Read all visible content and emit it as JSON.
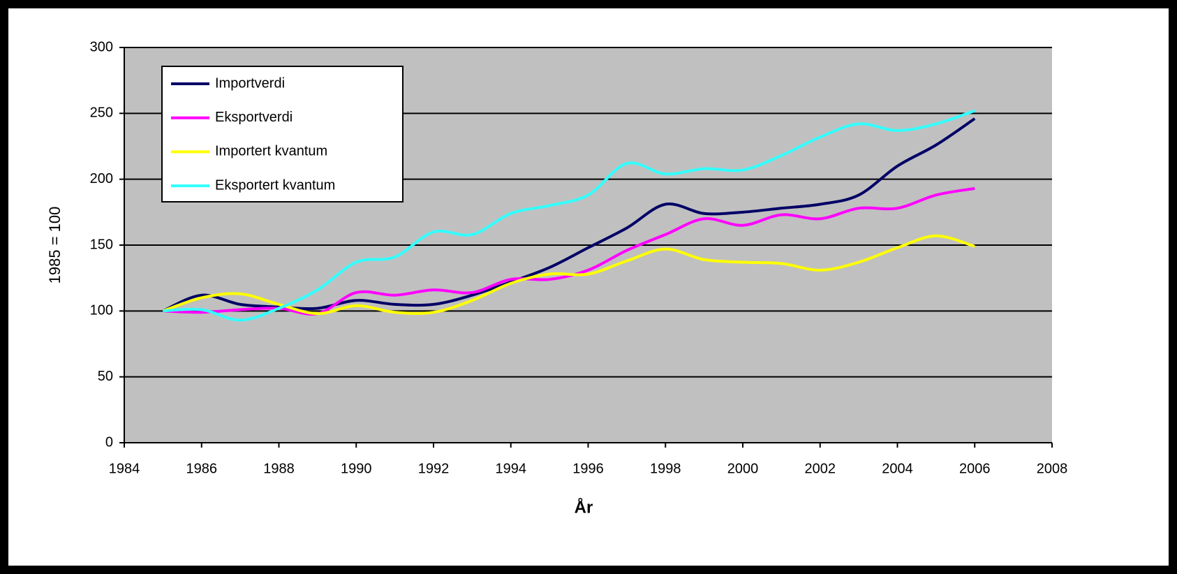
{
  "chart_data": {
    "type": "line",
    "x": [
      1985,
      1986,
      1987,
      1988,
      1989,
      1990,
      1991,
      1992,
      1993,
      1994,
      1995,
      1996,
      1997,
      1998,
      1999,
      2000,
      2001,
      2002,
      2003,
      2004,
      2005,
      2006
    ],
    "series": [
      {
        "name": "Importverdi",
        "color": "#000066",
        "values": [
          100,
          112,
          105,
          103,
          102,
          108,
          105,
          105,
          112,
          122,
          133,
          148,
          163,
          181,
          174,
          175,
          178,
          181,
          188,
          210,
          226,
          246
        ]
      },
      {
        "name": "Eksportverdi",
        "color": "#ff00ff",
        "values": [
          100,
          99,
          101,
          102,
          98,
          114,
          112,
          116,
          114,
          124,
          124,
          131,
          146,
          158,
          170,
          165,
          173,
          170,
          178,
          178,
          188,
          193
        ]
      },
      {
        "name": "Importert kvantum",
        "color": "#ffff00",
        "values": [
          100,
          110,
          113,
          105,
          98,
          104,
          99,
          99,
          108,
          121,
          128,
          128,
          138,
          147,
          139,
          137,
          136,
          131,
          137,
          148,
          157,
          149
        ]
      },
      {
        "name": "Eksportert kvantum",
        "color": "#33ffff",
        "values": [
          100,
          101,
          93,
          102,
          116,
          137,
          141,
          160,
          158,
          174,
          180,
          188,
          212,
          204,
          208,
          207,
          218,
          232,
          242,
          237,
          242,
          252
        ]
      }
    ],
    "xlabel": "År",
    "ylabel": "1985 = 100",
    "xlim": [
      1984,
      2008
    ],
    "xticks": [
      1984,
      1986,
      1988,
      1990,
      1992,
      1994,
      1996,
      1998,
      2000,
      2002,
      2004,
      2006,
      2008
    ],
    "ylim": [
      0,
      300
    ],
    "yticks": [
      0,
      50,
      100,
      150,
      200,
      250,
      300
    ],
    "grid": true,
    "legend": "upper left",
    "background": "#c0c0c0"
  }
}
